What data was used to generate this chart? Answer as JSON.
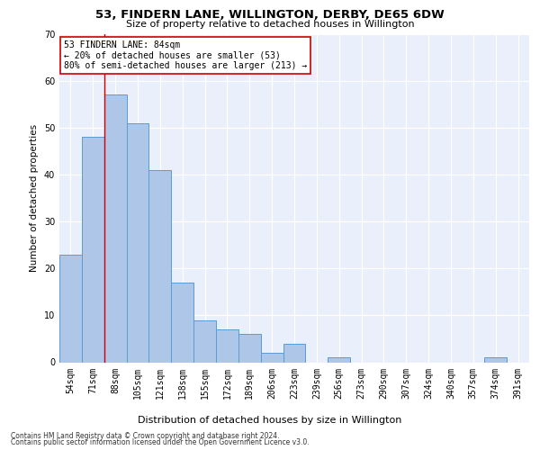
{
  "title": "53, FINDERN LANE, WILLINGTON, DERBY, DE65 6DW",
  "subtitle": "Size of property relative to detached houses in Willington",
  "xlabel": "Distribution of detached houses by size in Willington",
  "ylabel": "Number of detached properties",
  "footnote1": "Contains HM Land Registry data © Crown copyright and database right 2024.",
  "footnote2": "Contains public sector information licensed under the Open Government Licence v3.0.",
  "categories": [
    "54sqm",
    "71sqm",
    "88sqm",
    "105sqm",
    "121sqm",
    "138sqm",
    "155sqm",
    "172sqm",
    "189sqm",
    "206sqm",
    "223sqm",
    "239sqm",
    "256sqm",
    "273sqm",
    "290sqm",
    "307sqm",
    "324sqm",
    "340sqm",
    "357sqm",
    "374sqm",
    "391sqm"
  ],
  "values": [
    23,
    48,
    57,
    51,
    41,
    17,
    9,
    7,
    6,
    2,
    4,
    0,
    1,
    0,
    0,
    0,
    0,
    0,
    0,
    1,
    0
  ],
  "bar_color": "#aec6e8",
  "bar_edge_color": "#5b9bd5",
  "background_color": "#eaf0fb",
  "grid_color": "#ffffff",
  "vline_x": 1.5,
  "vline_color": "#cc0000",
  "annotation_text": "53 FINDERN LANE: 84sqm\n← 20% of detached houses are smaller (53)\n80% of semi-detached houses are larger (213) →",
  "annotation_box_color": "#ffffff",
  "annotation_box_edge": "#cc0000",
  "ylim": [
    0,
    70
  ],
  "yticks": [
    0,
    10,
    20,
    30,
    40,
    50,
    60,
    70
  ],
  "title_fontsize": 9.5,
  "subtitle_fontsize": 8,
  "ylabel_fontsize": 7.5,
  "xlabel_fontsize": 8,
  "tick_fontsize": 7,
  "annot_fontsize": 7,
  "footnote_fontsize": 5.5
}
